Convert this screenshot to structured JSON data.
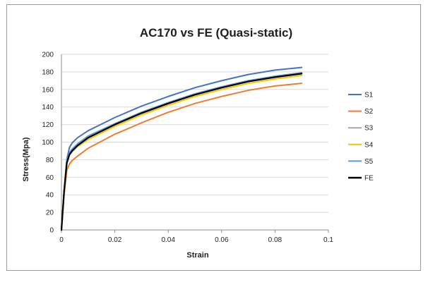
{
  "chart_data": {
    "type": "line",
    "title": "AC170 vs FE (Quasi-static)",
    "xlabel": "Strain",
    "ylabel": "Stress(Mpa)",
    "xlim": [
      0,
      0.1
    ],
    "ylim": [
      0,
      200
    ],
    "x_ticks": [
      "0",
      "0.02",
      "0.04",
      "0.06",
      "0.08",
      "0.1"
    ],
    "y_ticks": [
      "0",
      "20",
      "40",
      "60",
      "80",
      "100",
      "120",
      "140",
      "160",
      "180",
      "200"
    ],
    "grid": "horizontal",
    "legend_position": "right",
    "series": [
      {
        "name": "S1",
        "color": "#4472c4",
        "x": [
          0,
          0.001,
          0.002,
          0.003,
          0.004,
          0.006,
          0.01,
          0.02,
          0.03,
          0.04,
          0.05,
          0.06,
          0.07,
          0.08,
          0.09
        ],
        "y": [
          0,
          45,
          80,
          94,
          99,
          105,
          113,
          128,
          141,
          152,
          162,
          170,
          177,
          182,
          185
        ]
      },
      {
        "name": "S2",
        "color": "#ed7d31",
        "x": [
          0,
          0.001,
          0.002,
          0.003,
          0.004,
          0.006,
          0.01,
          0.02,
          0.03,
          0.04,
          0.05,
          0.06,
          0.07,
          0.08,
          0.09
        ],
        "y": [
          0,
          40,
          68,
          75,
          79,
          84,
          93,
          109,
          122,
          134,
          144,
          152,
          159,
          164,
          167
        ]
      },
      {
        "name": "S3",
        "color": "#a5a5a5",
        "x": [
          0,
          0.001,
          0.002,
          0.003,
          0.004,
          0.006,
          0.01,
          0.02,
          0.03,
          0.04,
          0.05,
          0.06,
          0.07,
          0.08,
          0.09
        ],
        "y": [
          0,
          45,
          78,
          88,
          92,
          98,
          106,
          121,
          134,
          145,
          155,
          163,
          170,
          175,
          179
        ]
      },
      {
        "name": "S4",
        "color": "#ffc000",
        "x": [
          0,
          0.001,
          0.002,
          0.003,
          0.004,
          0.006,
          0.01,
          0.02,
          0.03,
          0.04,
          0.05,
          0.06,
          0.07,
          0.08,
          0.09
        ],
        "y": [
          0,
          44,
          76,
          85,
          89,
          95,
          103,
          118,
          131,
          142,
          152,
          160,
          167,
          172,
          176
        ]
      },
      {
        "name": "S5",
        "color": "#5b9bd5",
        "x": [
          0,
          0.001,
          0.002,
          0.003,
          0.004,
          0.006,
          0.01,
          0.02,
          0.03,
          0.04,
          0.05,
          0.06,
          0.07,
          0.08,
          0.09
        ],
        "y": [
          0,
          45,
          79,
          88,
          92,
          98,
          107,
          121,
          134,
          145,
          155,
          163,
          170,
          175,
          179
        ]
      },
      {
        "name": "FE",
        "color": "#000000",
        "x": [
          0,
          0.001,
          0.002,
          0.003,
          0.004,
          0.006,
          0.01,
          0.02,
          0.03,
          0.04,
          0.05,
          0.06,
          0.07,
          0.08,
          0.09
        ],
        "y": [
          0,
          44,
          76,
          86,
          90,
          96,
          105,
          120,
          133,
          144,
          154,
          162,
          169,
          174,
          178
        ]
      }
    ]
  }
}
